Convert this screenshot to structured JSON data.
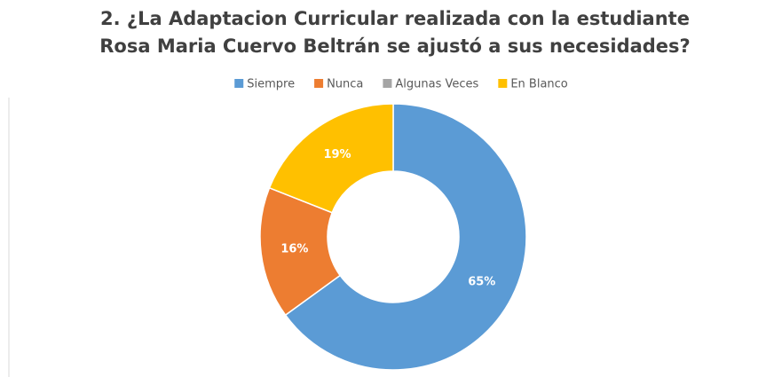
{
  "chart_data": {
    "type": "donut",
    "title": [
      "2. ¿La Adaptacion Curricular realizada con la estudiante",
      "Rosa Maria Cuervo Beltrán se ajustó a sus necesidades?"
    ],
    "categories": [
      "Siempre",
      "Nunca",
      "Algunas Veces",
      "En Blanco"
    ],
    "values": [
      65,
      16,
      0,
      19
    ],
    "value_labels": [
      "65%",
      "16%",
      null,
      "19%"
    ],
    "colors": [
      "#5b9bd5",
      "#ed7d31",
      "#a5a5a5",
      "#ffc000"
    ],
    "legend": "top"
  }
}
